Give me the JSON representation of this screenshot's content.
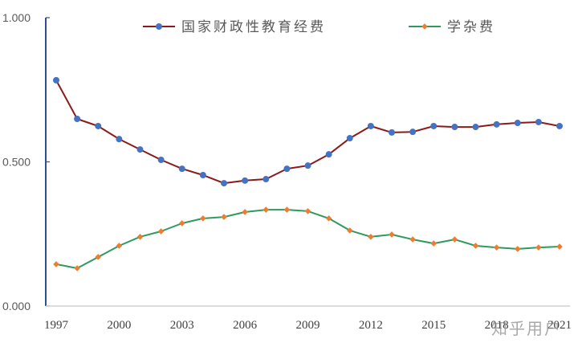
{
  "chart_data": {
    "type": "line",
    "title": "",
    "xlabel": "",
    "ylabel": "",
    "ylim": [
      0,
      1
    ],
    "y_ticks": [
      "0.000",
      "0.500",
      "1.000"
    ],
    "x_tick_labels": [
      "1997",
      "2000",
      "2003",
      "2006",
      "2009",
      "2012",
      "2015",
      "2018",
      "2021"
    ],
    "legend_position": "top",
    "grid": false,
    "x": [
      1997,
      1998,
      1999,
      2000,
      2001,
      2002,
      2003,
      2004,
      2005,
      2006,
      2007,
      2008,
      2009,
      2010,
      2011,
      2012,
      2013,
      2014,
      2015,
      2016,
      2017,
      2018,
      2019,
      2020,
      2021
    ],
    "series": [
      {
        "name": "国家财政性教育经费",
        "line_color": "#8B1A1A",
        "marker_color": "#4472C4",
        "marker": "circle",
        "values": [
          0.783,
          0.649,
          0.624,
          0.579,
          0.543,
          0.507,
          0.476,
          0.454,
          0.426,
          0.435,
          0.44,
          0.476,
          0.487,
          0.526,
          0.582,
          0.624,
          0.602,
          0.604,
          0.624,
          0.621,
          0.621,
          0.63,
          0.635,
          0.638,
          0.624
        ]
      },
      {
        "name": "学杂费",
        "line_color": "#2E9A5E",
        "marker_color": "#ED7D31",
        "marker": "diamond",
        "values": [
          0.145,
          0.131,
          0.17,
          0.209,
          0.24,
          0.259,
          0.287,
          0.304,
          0.309,
          0.326,
          0.334,
          0.334,
          0.329,
          0.304,
          0.262,
          0.24,
          0.248,
          0.231,
          0.217,
          0.231,
          0.209,
          0.203,
          0.198,
          0.203,
          0.206
        ]
      }
    ]
  },
  "watermark": "知乎用户",
  "colors": {
    "axis": "#2F4F8F",
    "baseline": "#D0D0D0"
  }
}
